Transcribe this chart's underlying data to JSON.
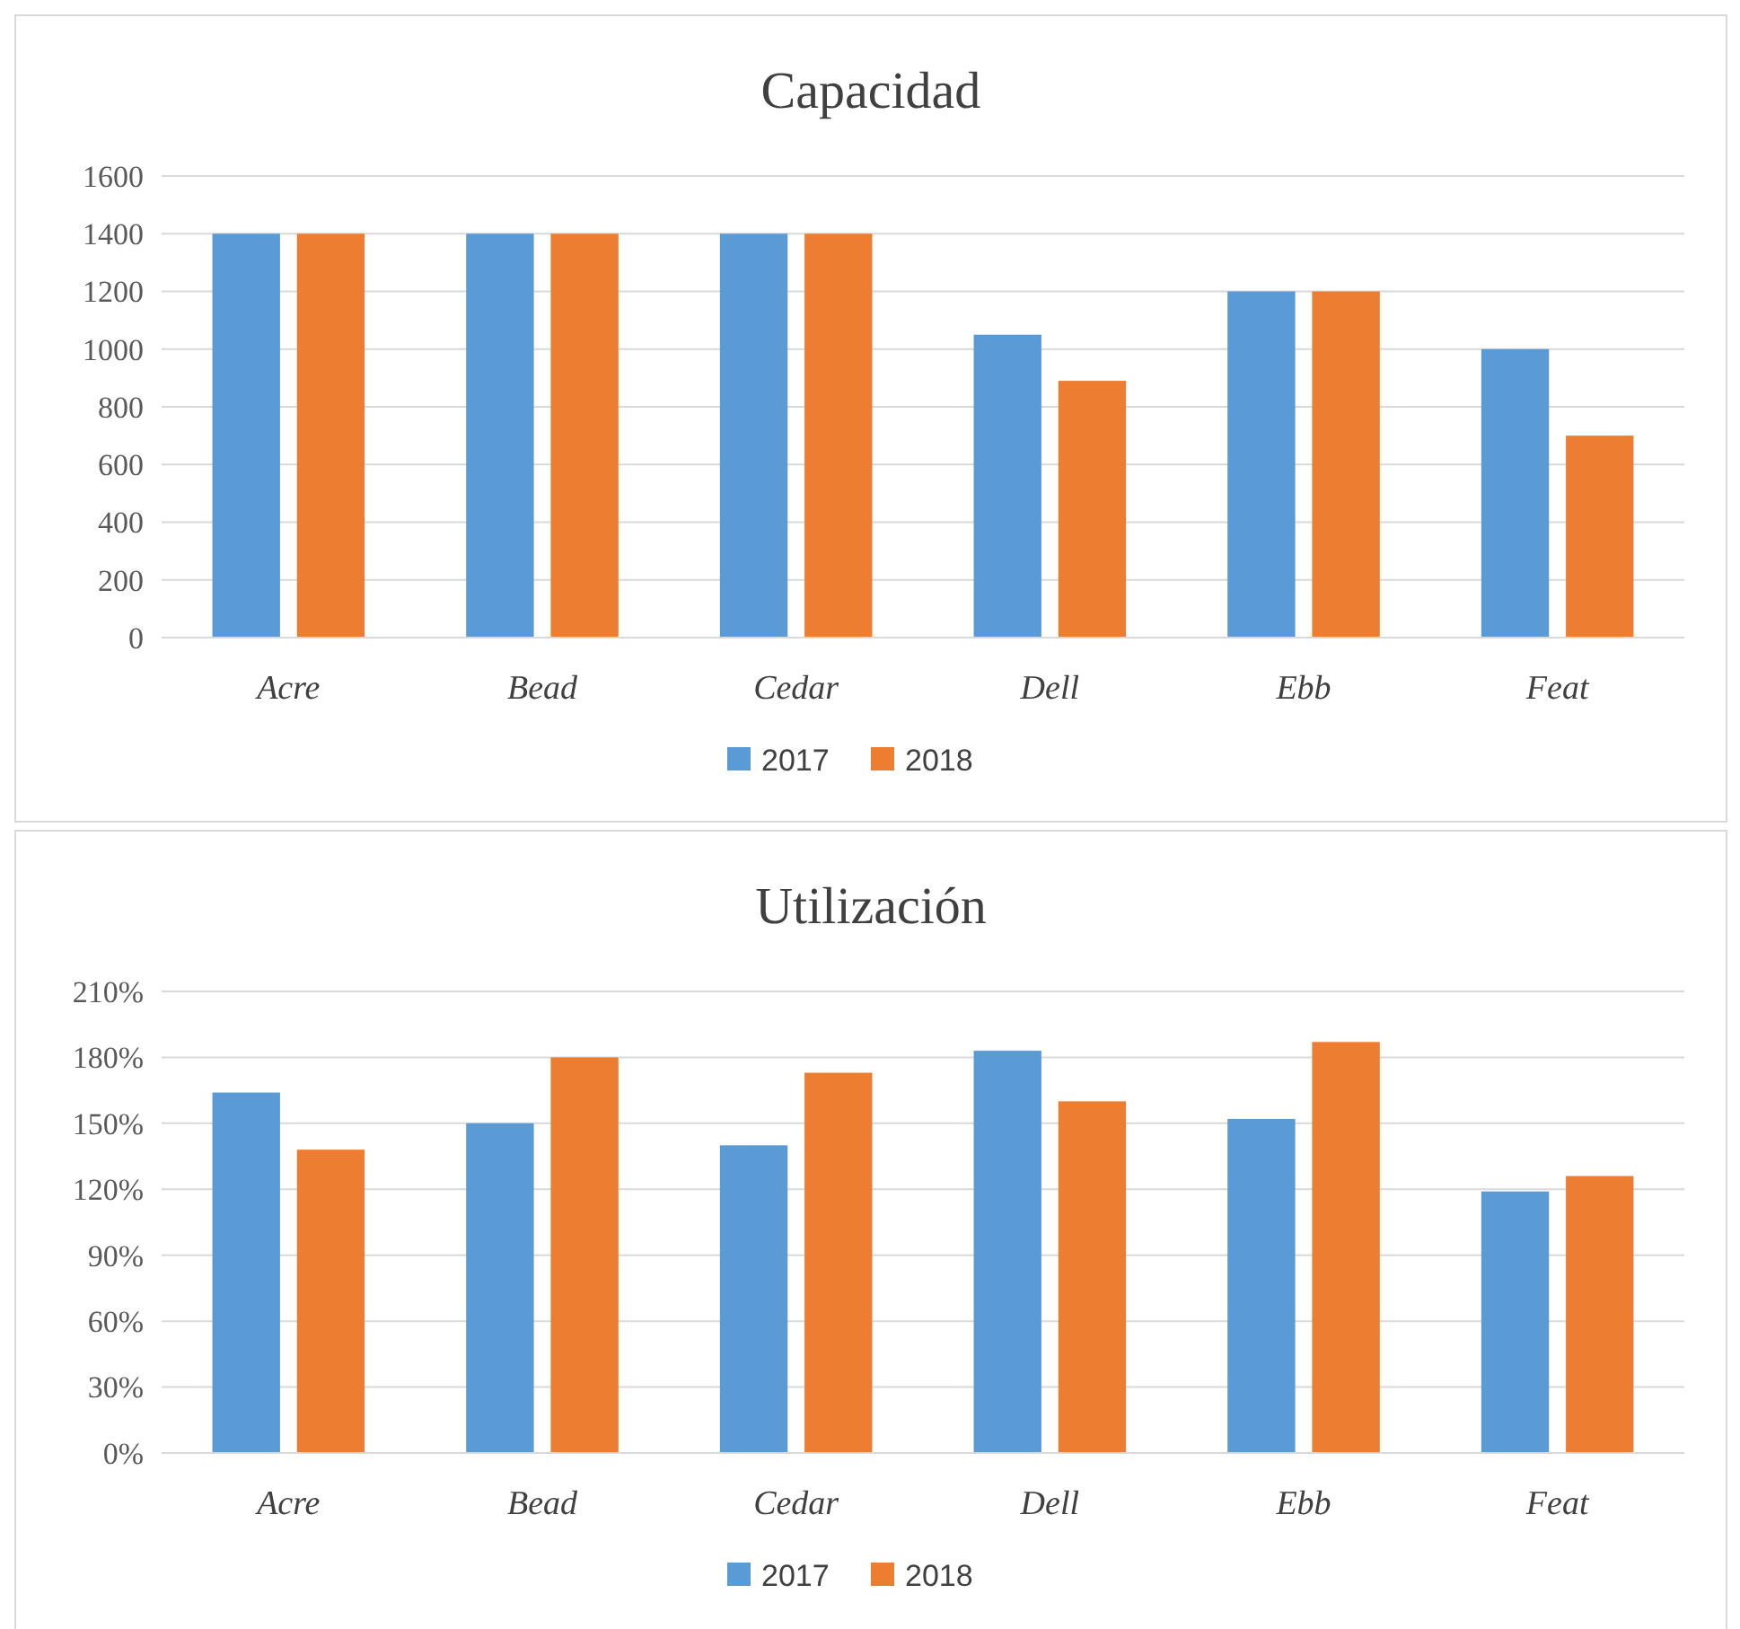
{
  "chart_data": [
    {
      "type": "bar",
      "title": "Capacidad",
      "categories": [
        "Acre",
        "Bead",
        "Cedar",
        "Dell",
        "Ebb",
        "Feat"
      ],
      "series": [
        {
          "name": "2017",
          "color": "#5b9bd5",
          "values": [
            1400,
            1400,
            1400,
            1050,
            1200,
            1000
          ]
        },
        {
          "name": "2018",
          "color": "#ed7d31",
          "values": [
            1400,
            1400,
            1400,
            890,
            1200,
            700
          ]
        }
      ],
      "ylim": [
        0,
        1600
      ],
      "yticks": [
        0,
        200,
        400,
        600,
        800,
        1000,
        1200,
        1400,
        1600
      ],
      "grid": "y",
      "legend": "bottom"
    },
    {
      "type": "bar",
      "title": "Utilización",
      "categories": [
        "Acre",
        "Bead",
        "Cedar",
        "Dell",
        "Ebb",
        "Feat"
      ],
      "series": [
        {
          "name": "2017",
          "color": "#5b9bd5",
          "values": [
            164,
            150,
            140,
            183,
            152,
            119
          ]
        },
        {
          "name": "2018",
          "color": "#ed7d31",
          "values": [
            138,
            180,
            173,
            160,
            187,
            126
          ]
        }
      ],
      "ylim": [
        0,
        210
      ],
      "yticks": [
        {
          "value": 0,
          "label": "0%"
        },
        {
          "value": 30,
          "label": "30%"
        },
        {
          "value": 60,
          "label": "60%"
        },
        {
          "value": 90,
          "label": "90%"
        },
        {
          "value": 120,
          "label": "120%"
        },
        {
          "value": 150,
          "label": "150%"
        },
        {
          "value": 180,
          "label": "180%"
        },
        {
          "value": 210,
          "label": "210%"
        }
      ],
      "grid": "y",
      "legend": "bottom"
    }
  ]
}
